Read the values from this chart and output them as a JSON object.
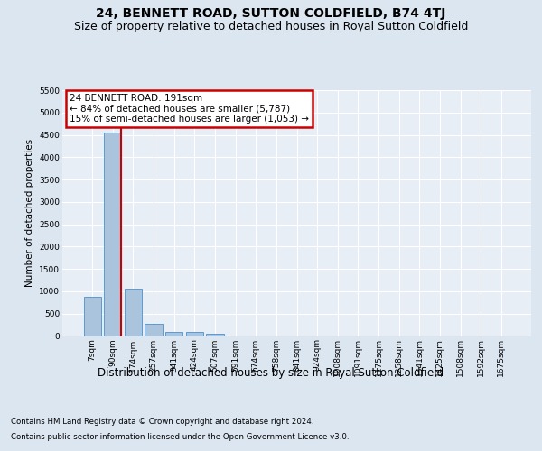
{
  "title": "24, BENNETT ROAD, SUTTON COLDFIELD, B74 4TJ",
  "subtitle": "Size of property relative to detached houses in Royal Sutton Coldfield",
  "xlabel": "Distribution of detached houses by size in Royal Sutton Coldfield",
  "ylabel": "Number of detached properties",
  "footnote1": "Contains HM Land Registry data © Crown copyright and database right 2024.",
  "footnote2": "Contains public sector information licensed under the Open Government Licence v3.0.",
  "bar_labels": [
    "7sqm",
    "90sqm",
    "174sqm",
    "257sqm",
    "341sqm",
    "424sqm",
    "507sqm",
    "591sqm",
    "674sqm",
    "758sqm",
    "841sqm",
    "924sqm",
    "1008sqm",
    "1091sqm",
    "1175sqm",
    "1258sqm",
    "1341sqm",
    "1425sqm",
    "1508sqm",
    "1592sqm",
    "1675sqm"
  ],
  "bar_values": [
    870,
    4550,
    1060,
    280,
    100,
    85,
    55,
    0,
    0,
    0,
    0,
    0,
    0,
    0,
    0,
    0,
    0,
    0,
    0,
    0,
    0
  ],
  "bar_color": "#aac4de",
  "bar_edgecolor": "#5b9bd5",
  "vline_x": 1.425,
  "vline_color": "#cc0000",
  "annotation_text": "24 BENNETT ROAD: 191sqm\n← 84% of detached houses are smaller (5,787)\n15% of semi-detached houses are larger (1,053) →",
  "annotation_box_facecolor": "#ffffff",
  "annotation_box_edgecolor": "#cc0000",
  "ylim": [
    0,
    5500
  ],
  "yticks": [
    0,
    500,
    1000,
    1500,
    2000,
    2500,
    3000,
    3500,
    4000,
    4500,
    5000,
    5500
  ],
  "bg_color": "#dce6f1",
  "plot_bg_color": "#e8eef6",
  "grid_color": "#ffffff",
  "title_fontsize": 10,
  "subtitle_fontsize": 9,
  "xlabel_fontsize": 8.5,
  "ylabel_fontsize": 7.5,
  "tick_fontsize": 6.5,
  "annotation_fontsize": 7.5,
  "footnote_fontsize": 6.2
}
